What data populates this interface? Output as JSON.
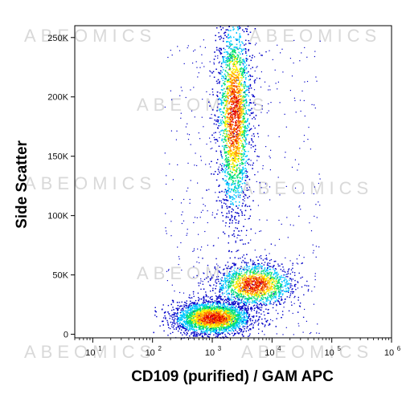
{
  "chart_data": {
    "type": "scatter",
    "title": "",
    "xlabel": "CD109 (purified) / GAM APC",
    "ylabel": "Side Scatter",
    "x_scale": "log",
    "y_scale": "linear",
    "xlim": [
      5,
      1000000
    ],
    "ylim": [
      -3000,
      260000
    ],
    "x_ticks": [
      {
        "value": 10,
        "base": "10",
        "exp": "1"
      },
      {
        "value": 100,
        "base": "10",
        "exp": "2"
      },
      {
        "value": 1000,
        "base": "10",
        "exp": "3"
      },
      {
        "value": 10000,
        "base": "10",
        "exp": "4"
      },
      {
        "value": 100000,
        "base": "10",
        "exp": "5"
      },
      {
        "value": 1000000,
        "base": "10",
        "exp": "6"
      }
    ],
    "y_ticks": [
      {
        "value": 0,
        "label": "0"
      },
      {
        "value": 50000,
        "label": "50K"
      },
      {
        "value": 100000,
        "label": "100K"
      },
      {
        "value": 150000,
        "label": "150K"
      },
      {
        "value": 200000,
        "label": "200K"
      },
      {
        "value": 250000,
        "label": "250K"
      }
    ],
    "populations": [
      {
        "x_center": 1000,
        "y_center": 14000,
        "x_spread_decades": 0.32,
        "y_spread": 7000,
        "events": 3800
      },
      {
        "x_center": 5000,
        "y_center": 42000,
        "x_spread_decades": 0.32,
        "y_spread": 9000,
        "events": 1700
      },
      {
        "x_center": 2300,
        "y_center": 185000,
        "x_spread_decades": 0.14,
        "y_spread": 42000,
        "events": 4200
      }
    ],
    "color_scale": [
      "#0000c8",
      "#00c8ff",
      "#00e070",
      "#ffee00",
      "#ff8000",
      "#e00000"
    ],
    "grid": false,
    "legend": "none"
  },
  "watermark": "ABEOMICS"
}
